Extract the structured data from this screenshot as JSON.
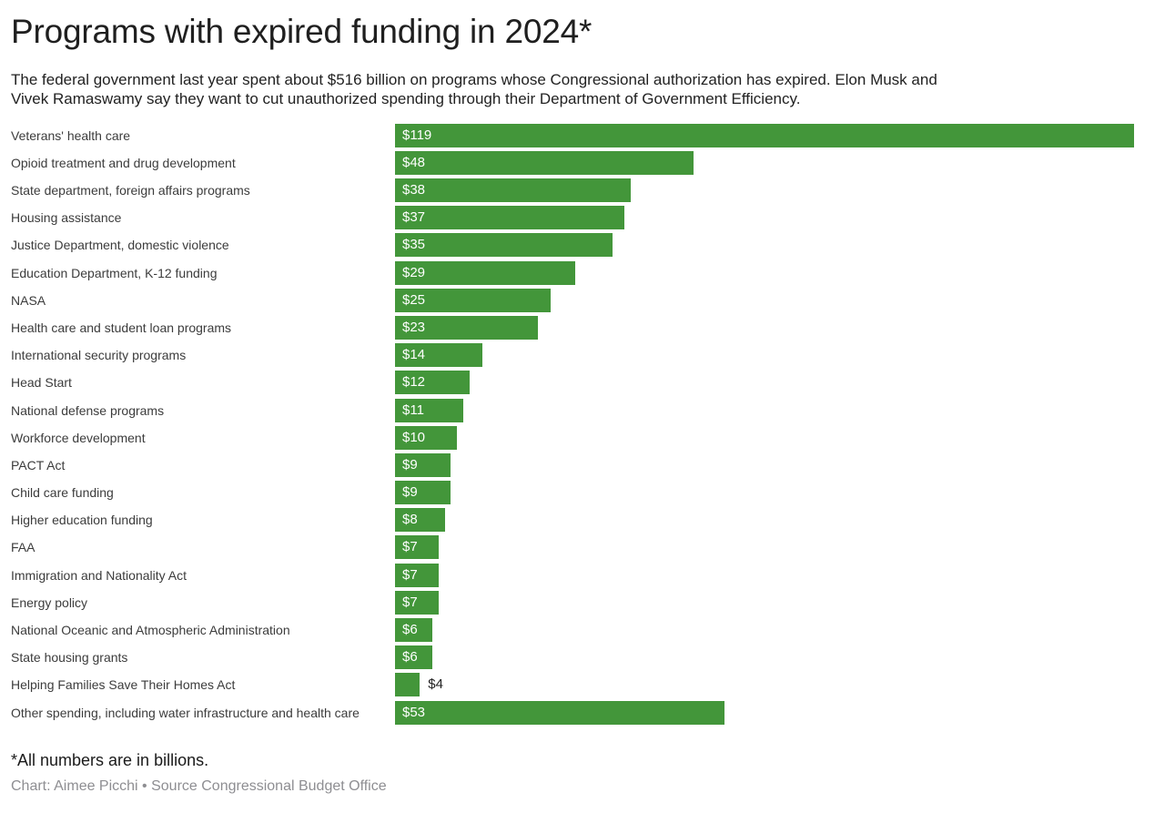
{
  "header": {
    "title": "Programs with expired funding in 2024*",
    "subtitle_line1": "The federal government last year spent about $516 billion on programs whose Congressional authorization has expired. Elon Musk and",
    "subtitle_line2": "Vivek Ramaswamy say they want to cut unauthorized spending through their Department of Government Efficiency."
  },
  "chart_data": {
    "type": "bar",
    "orientation": "horizontal",
    "title": "Programs with expired funding in 2024*",
    "unit_note": "All numbers are in billions of dollars",
    "value_prefix": "$",
    "xlim": [
      0,
      119
    ],
    "grid": false,
    "legend": "none",
    "bar_color": "#43963a",
    "categories": [
      "Veterans' health care",
      "Opioid treatment and drug development",
      "State department, foreign affairs programs",
      "Housing assistance",
      "Justice Department, domestic violence",
      "Education Department, K-12 funding",
      "NASA",
      "Health care and student loan programs",
      "International security programs",
      "Head Start",
      "National defense programs",
      "Workforce development",
      "PACT Act",
      "Child care funding",
      "Higher education funding",
      "FAA",
      "Immigration and Nationality Act",
      "Energy policy",
      "National Oceanic and Atmospheric Administration",
      "State housing grants",
      "Helping Families Save Their Homes Act",
      "Other spending, including water infrastructure and health care"
    ],
    "values": [
      119,
      48,
      38,
      37,
      35,
      29,
      25,
      23,
      14,
      12,
      11,
      10,
      9,
      9,
      8,
      7,
      7,
      7,
      6,
      6,
      4,
      53
    ],
    "value_labels": [
      "$119",
      "$48",
      "$38",
      "$37",
      "$35",
      "$29",
      "$25",
      "$23",
      "$14",
      "$12",
      "$11",
      "$10",
      "$9",
      "$9",
      "$8",
      "$7",
      "$7",
      "$7",
      "$6",
      "$6",
      "$4",
      "$53"
    ],
    "value_label_inside": [
      true,
      true,
      true,
      true,
      true,
      true,
      true,
      true,
      true,
      true,
      true,
      true,
      true,
      true,
      true,
      true,
      true,
      true,
      true,
      true,
      false,
      true
    ]
  },
  "footer": {
    "note": "*All numbers are in billions.",
    "credit": "Chart: Aimee Picchi • Source Congressional Budget Office"
  }
}
